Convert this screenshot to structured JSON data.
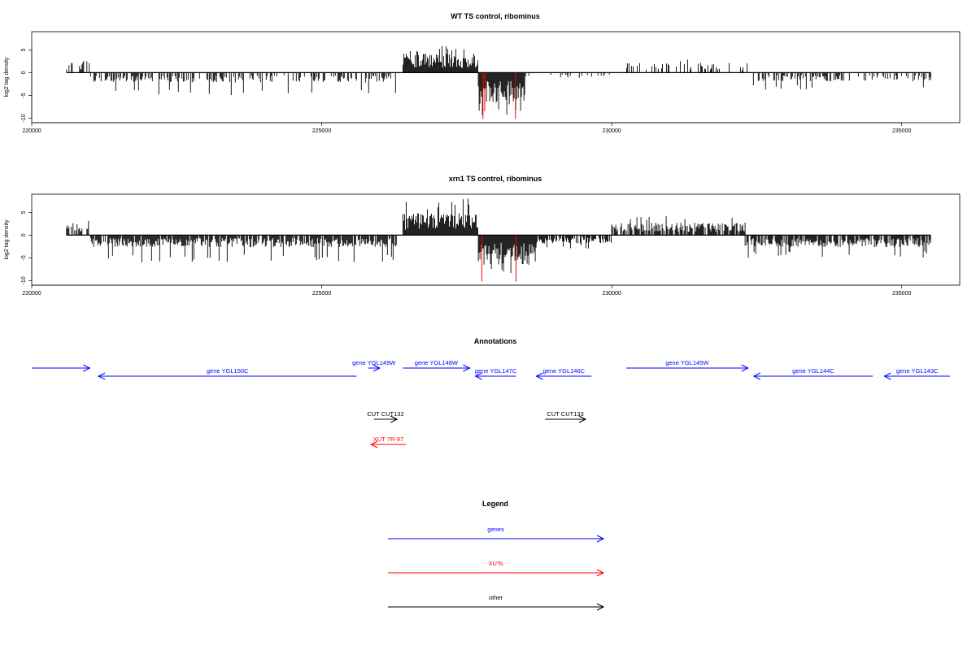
{
  "chart_data": [
    {
      "type": "bar",
      "title": "WT TS control, ribominus",
      "ylabel": "log2 tag density",
      "xlim": [
        220000,
        236000
      ],
      "ylim": [
        -11,
        9
      ],
      "x_ticks": [
        220000,
        225000,
        230000,
        235000
      ],
      "x_tick_labels": [
        "220000",
        "225000",
        "230000",
        "235000"
      ],
      "y_ticks": [
        -10,
        -5,
        0,
        5
      ],
      "y_tick_labels": [
        "-10",
        "-5",
        "0",
        "5"
      ],
      "data_extent": [
        220600,
        235500
      ],
      "regions": [
        {
          "start": 220600,
          "end": 221000,
          "sign": 1,
          "typ": 2.2,
          "max": 3.8,
          "density": 0.35
        },
        {
          "start": 221000,
          "end": 226300,
          "sign": -1,
          "typ": 1.8,
          "max": 5.0,
          "density": 0.45
        },
        {
          "start": 226400,
          "end": 227700,
          "sign": 1,
          "typ": 3.5,
          "max": 6.0,
          "density": 1.0
        },
        {
          "start": 227700,
          "end": 228500,
          "sign": -1,
          "typ": 5.5,
          "max": 9.5,
          "density": 1.0
        },
        {
          "start": 228500,
          "end": 230000,
          "sign": -1,
          "typ": 1.0,
          "max": 3.0,
          "density": 0.15
        },
        {
          "start": 230200,
          "end": 232400,
          "sign": 1,
          "typ": 1.8,
          "max": 3.3,
          "density": 0.3
        },
        {
          "start": 232400,
          "end": 235500,
          "sign": -1,
          "typ": 1.6,
          "max": 3.8,
          "density": 0.4
        }
      ],
      "red_bars": [
        {
          "x": 227780,
          "y": -10.2
        },
        {
          "x": 227810,
          "y": -8.5
        },
        {
          "x": 228340,
          "y": -10.2
        }
      ]
    },
    {
      "type": "bar",
      "title": "xrn1 TS control, ribominus",
      "ylabel": "log2 tag density",
      "xlim": [
        220000,
        236000
      ],
      "ylim": [
        -11,
        9
      ],
      "x_ticks": [
        220000,
        225000,
        230000,
        235000
      ],
      "x_tick_labels": [
        "220000",
        "225000",
        "230000",
        "235000"
      ],
      "y_ticks": [
        -10,
        -5,
        0,
        5
      ],
      "y_tick_labels": [
        "-10",
        "-5",
        "0",
        "5"
      ],
      "data_extent": [
        220600,
        235500
      ],
      "regions": [
        {
          "start": 220600,
          "end": 221000,
          "sign": 1,
          "typ": 2.2,
          "max": 3.8,
          "density": 0.6
        },
        {
          "start": 221000,
          "end": 226300,
          "sign": -1,
          "typ": 2.2,
          "max": 6.0,
          "density": 0.85
        },
        {
          "start": 226400,
          "end": 227700,
          "sign": 1,
          "typ": 4.0,
          "max": 8.0,
          "density": 1.0
        },
        {
          "start": 227700,
          "end": 228700,
          "sign": -1,
          "typ": 5.5,
          "max": 10.2,
          "density": 1.0
        },
        {
          "start": 228700,
          "end": 230000,
          "sign": -1,
          "typ": 1.5,
          "max": 3.0,
          "density": 0.7
        },
        {
          "start": 230000,
          "end": 232300,
          "sign": 1,
          "typ": 2.3,
          "max": 4.2,
          "density": 0.8
        },
        {
          "start": 232300,
          "end": 235500,
          "sign": -1,
          "typ": 2.2,
          "max": 5.0,
          "density": 0.8
        }
      ],
      "red_bars": [
        {
          "x": 227760,
          "y": -10.2
        },
        {
          "x": 228350,
          "y": -10.2
        }
      ]
    }
  ],
  "annotations": {
    "title": "Annotations",
    "items": [
      {
        "label": "",
        "start": 220000,
        "end": 221000,
        "dir": "right",
        "color": "#0000ff",
        "row": 1
      },
      {
        "label": "gene YGL150C",
        "start": 221150,
        "end": 225600,
        "dir": "left",
        "color": "#0000ff",
        "row": 2
      },
      {
        "label": "gene YGL149W",
        "start": 225800,
        "end": 226000,
        "dir": "right",
        "color": "#0000ff",
        "row": 1
      },
      {
        "label": "gene YGL148W",
        "start": 226400,
        "end": 227550,
        "dir": "right",
        "color": "#0000ff",
        "row": 1
      },
      {
        "label": "gene YGL147C",
        "start": 227650,
        "end": 228350,
        "dir": "left",
        "color": "#0000ff",
        "row": 2
      },
      {
        "label": "gene YGL146C",
        "start": 228700,
        "end": 229650,
        "dir": "left",
        "color": "#0000ff",
        "row": 2
      },
      {
        "label": "gene YGL145W",
        "start": 230250,
        "end": 232350,
        "dir": "right",
        "color": "#0000ff",
        "row": 1
      },
      {
        "label": "gene YGL144C",
        "start": 232450,
        "end": 234500,
        "dir": "left",
        "color": "#0000ff",
        "row": 2
      },
      {
        "label": "gene YGL143C",
        "start": 234700,
        "end": 235950,
        "dir": "left",
        "color": "#0000ff",
        "row": 2
      },
      {
        "label": "CUT CUT132",
        "start": 225900,
        "end": 226300,
        "dir": "right",
        "color": "#000000",
        "row": 3
      },
      {
        "label": "CUT CUT133",
        "start": 228850,
        "end": 229550,
        "dir": "right",
        "color": "#000000",
        "row": 3
      },
      {
        "label": "XUT 7R-97",
        "start": 225850,
        "end": 226450,
        "dir": "left",
        "color": "#ff0000",
        "row": 4
      }
    ]
  },
  "legend": {
    "title": "Legend",
    "items": [
      {
        "label": "genes",
        "color": "#0000ff"
      },
      {
        "label": "XUTs",
        "color": "#ff0000"
      },
      {
        "label": "other",
        "color": "#000000"
      }
    ]
  },
  "colors": {
    "bars": "#000000",
    "highlight": "#ff0000",
    "genes": "#0000ff",
    "xuts": "#ff0000",
    "other": "#000000"
  }
}
